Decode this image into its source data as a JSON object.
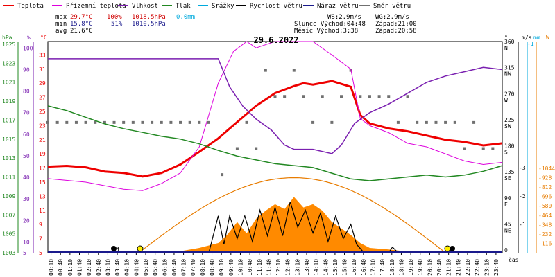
{
  "colors": {
    "temperature": "#ee0000",
    "felt_temperature": "#dd00dd",
    "humidity": "#7a1fb0",
    "pressure": "#228822",
    "precipitation": "#00aadd",
    "wind_speed": "#000000",
    "wind_gust": "#1a1a8c",
    "wind_direction": "#707070",
    "sun_elevation": "#e87c00",
    "solar_radiation": "#ff8a00",
    "max": "#d00000",
    "min": "#1a1a8c",
    "precip_text": "#00aadd"
  },
  "legend": [
    {
      "label": "Teplota",
      "color_key": "temperature"
    },
    {
      "label": "Přízemní teplota",
      "color_key": "felt_temperature"
    },
    {
      "label": "Vlhkost",
      "color_key": "humidity"
    },
    {
      "label": "Tlak",
      "color_key": "pressure"
    },
    {
      "label": "Srážky",
      "color_key": "precipitation"
    },
    {
      "label": "Rychlost větru",
      "color_key": "wind_speed"
    },
    {
      "label": "Náraz větru",
      "color_key": "wind_gust"
    },
    {
      "label": "Směr větru",
      "color_key": "wind_direction"
    }
  ],
  "stats": {
    "max": {
      "label": "max",
      "temp": "29.7°C",
      "hum": "100%",
      "press": "1018.5hPa",
      "precip": "0.0mm"
    },
    "min": {
      "label": "min",
      "temp": "15.8°C",
      "hum": "51%",
      "press": "1010.5hPa"
    },
    "avg": {
      "label": "avg",
      "temp": "21.6°C"
    }
  },
  "info": {
    "ws": "WS:2.9m/s",
    "wg": "WG:2.9m/s",
    "sun": "Slunce Východ:04:48",
    "sun_set": "Západ:21:00",
    "moon": "Měsíc  Východ:3:38",
    "moon_set": "Západ:20:58"
  },
  "chart_data": {
    "type": "line",
    "title": "29.6.2022",
    "x_axis": {
      "label": "čas",
      "ticks": [
        "00:10",
        "00:40",
        "01:10",
        "01:40",
        "02:10",
        "02:40",
        "03:10",
        "03:40",
        "04:10",
        "04:40",
        "05:10",
        "05:40",
        "06:10",
        "06:40",
        "07:10",
        "07:40",
        "08:10",
        "08:40",
        "09:10",
        "09:40",
        "10:10",
        "10:40",
        "11:10",
        "11:40",
        "12:10",
        "12:40",
        "13:10",
        "13:40",
        "14:10",
        "14:40",
        "15:10",
        "15:40",
        "16:10",
        "16:40",
        "17:10",
        "17:40",
        "18:10",
        "18:40",
        "19:10",
        "19:40",
        "20:10",
        "20:40",
        "21:10",
        "21:40",
        "22:10",
        "22:40",
        "23:10",
        "23:40"
      ]
    },
    "axes": {
      "pressure": {
        "unit": "hPa",
        "range": [
          1003,
          1025
        ],
        "ticks": [
          "1025",
          "1023",
          "1021",
          "1019",
          "1017",
          "1015",
          "1013",
          "1011",
          "1009",
          "1007",
          "1005",
          "1003"
        ]
      },
      "humidity": {
        "unit": "%",
        "range": [
          5,
          100
        ],
        "ticks": [
          "100",
          "90",
          "80",
          "70",
          "60",
          "50",
          "40",
          "30",
          "20",
          "10",
          "5"
        ]
      },
      "temperature": {
        "unit": "°C",
        "range": [
          5,
          35
        ],
        "ticks": [
          "33",
          "31",
          "29",
          "27",
          "25",
          "23",
          "21",
          "19",
          "17",
          "15",
          "13",
          "11",
          "9",
          "7",
          "5"
        ]
      },
      "wind_direction": {
        "unit": "°",
        "ticks": [
          {
            "deg": "360",
            "dir": "N"
          },
          {
            "deg": "315",
            "dir": "NW"
          },
          {
            "deg": "270",
            "dir": "W"
          },
          {
            "deg": "225",
            "dir": "SW"
          },
          {
            "deg": "180",
            "dir": "S"
          },
          {
            "deg": "135",
            "dir": "SE"
          },
          {
            "deg": "90",
            "dir": "E"
          },
          {
            "deg": "45",
            "dir": "NE"
          },
          {
            "deg": "0",
            "dir": ""
          }
        ]
      },
      "wind_speed": {
        "unit": "m/s",
        "ticks": [
          "3",
          "2",
          "1"
        ]
      },
      "precipitation": {
        "unit": "mm",
        "ticks": [
          "1"
        ]
      },
      "radiation": {
        "unit": "W",
        "ticks": [
          "1044",
          "928",
          "812",
          "696",
          "580",
          "464",
          "348",
          "232",
          "116"
        ]
      }
    },
    "series": [
      {
        "name": "Teplota",
        "color_key": "temperature",
        "axis": "temperature",
        "points": [
          [
            0,
            17.2
          ],
          [
            1,
            17.3
          ],
          [
            2,
            17.1
          ],
          [
            2.5,
            16.8
          ],
          [
            3,
            16.5
          ],
          [
            4,
            16.3
          ],
          [
            5,
            15.8
          ],
          [
            6,
            16.3
          ],
          [
            7,
            17.5
          ],
          [
            8,
            19.3
          ],
          [
            9,
            21.2
          ],
          [
            10,
            23.5
          ],
          [
            11,
            25.8
          ],
          [
            12,
            27.6
          ],
          [
            13,
            28.6
          ],
          [
            13.5,
            29.0
          ],
          [
            14,
            28.8
          ],
          [
            15,
            29.3
          ],
          [
            16,
            28.5
          ],
          [
            16.5,
            24.5
          ],
          [
            17,
            23.3
          ],
          [
            18,
            22.6
          ],
          [
            19,
            22.2
          ],
          [
            20,
            21.6
          ],
          [
            21,
            21.0
          ],
          [
            22,
            20.7
          ],
          [
            23,
            20.2
          ],
          [
            24,
            20.5
          ]
        ]
      },
      {
        "name": "Přízemní teplota",
        "color_key": "felt_temperature",
        "axis": "temperature",
        "points": [
          [
            0,
            15.5
          ],
          [
            2,
            15.0
          ],
          [
            3,
            14.5
          ],
          [
            4,
            14.0
          ],
          [
            5,
            13.8
          ],
          [
            6,
            14.8
          ],
          [
            7,
            16.3
          ],
          [
            8,
            20.0
          ],
          [
            9,
            29.0
          ],
          [
            9.8,
            33.5
          ],
          [
            10.5,
            35.5
          ],
          [
            11,
            34.0
          ],
          [
            12,
            35.5
          ],
          [
            13,
            35.0
          ],
          [
            14,
            35.5
          ],
          [
            15,
            33.0
          ],
          [
            16,
            31.0
          ],
          [
            16.5,
            24.0
          ],
          [
            17,
            23.0
          ],
          [
            18,
            22.0
          ],
          [
            19,
            20.5
          ],
          [
            20,
            20.0
          ],
          [
            21,
            19.0
          ],
          [
            22,
            18.0
          ],
          [
            23,
            17.5
          ],
          [
            24,
            17.8
          ]
        ]
      },
      {
        "name": "Vlhkost",
        "color_key": "humidity",
        "axis": "humidity",
        "points": [
          [
            0,
            95
          ],
          [
            9,
            95
          ],
          [
            9.6,
            82
          ],
          [
            10.3,
            73
          ],
          [
            11,
            67
          ],
          [
            11.8,
            62
          ],
          [
            12.5,
            55
          ],
          [
            13,
            53
          ],
          [
            14,
            53
          ],
          [
            15,
            51
          ],
          [
            15.5,
            55
          ],
          [
            16.2,
            65
          ],
          [
            17,
            70
          ],
          [
            18,
            74
          ],
          [
            19,
            79
          ],
          [
            20,
            84
          ],
          [
            21,
            87
          ],
          [
            22,
            89
          ],
          [
            23,
            91
          ],
          [
            24,
            90
          ]
        ]
      },
      {
        "name": "Tlak",
        "color_key": "pressure",
        "axis": "pressure",
        "points": [
          [
            0,
            1018.5
          ],
          [
            1,
            1018.0
          ],
          [
            2,
            1017.3
          ],
          [
            3,
            1016.6
          ],
          [
            4,
            1016.1
          ],
          [
            5,
            1015.7
          ],
          [
            6,
            1015.3
          ],
          [
            7,
            1015.0
          ],
          [
            8,
            1014.5
          ],
          [
            9,
            1013.8
          ],
          [
            10,
            1013.2
          ],
          [
            11,
            1012.8
          ],
          [
            12,
            1012.4
          ],
          [
            13,
            1012.2
          ],
          [
            14,
            1012.0
          ],
          [
            15,
            1011.4
          ],
          [
            16,
            1010.8
          ],
          [
            17,
            1010.6
          ],
          [
            18,
            1010.8
          ],
          [
            19,
            1011.0
          ],
          [
            20,
            1011.2
          ],
          [
            21,
            1011.0
          ],
          [
            22,
            1011.2
          ],
          [
            23,
            1011.6
          ],
          [
            24,
            1012.2
          ]
        ]
      }
    ],
    "wind_direction_points": [
      [
        0,
        225
      ],
      [
        0.5,
        225
      ],
      [
        1,
        225
      ],
      [
        1.5,
        225
      ],
      [
        2,
        225
      ],
      [
        2.5,
        225
      ],
      [
        3,
        225
      ],
      [
        3.5,
        225
      ],
      [
        4,
        225
      ],
      [
        4.5,
        225
      ],
      [
        5,
        225
      ],
      [
        5.5,
        225
      ],
      [
        6,
        225
      ],
      [
        6.5,
        225
      ],
      [
        7,
        225
      ],
      [
        7.5,
        225
      ],
      [
        8,
        225
      ],
      [
        8.5,
        225
      ],
      [
        9.2,
        135
      ],
      [
        10.0,
        180
      ],
      [
        10.5,
        225
      ],
      [
        11.0,
        180
      ],
      [
        11.5,
        315
      ],
      [
        12.0,
        270
      ],
      [
        12.5,
        270
      ],
      [
        13.0,
        315
      ],
      [
        13.5,
        270
      ],
      [
        14.0,
        225
      ],
      [
        14.5,
        270
      ],
      [
        15.0,
        225
      ],
      [
        15.5,
        270
      ],
      [
        16.0,
        315
      ],
      [
        16.5,
        270
      ],
      [
        17.0,
        270
      ],
      [
        17.5,
        270
      ],
      [
        18.0,
        270
      ],
      [
        18.5,
        225
      ],
      [
        19.0,
        270
      ],
      [
        19.5,
        225
      ],
      [
        20.0,
        225
      ],
      [
        20.5,
        225
      ],
      [
        21.0,
        225
      ],
      [
        21.5,
        225
      ],
      [
        22.0,
        180
      ],
      [
        22.5,
        225
      ],
      [
        23.0,
        180
      ],
      [
        23.5,
        180
      ]
    ],
    "wind_speed_points": [
      [
        0,
        0
      ],
      [
        8.5,
        0
      ],
      [
        9.0,
        1.3
      ],
      [
        9.3,
        0.3
      ],
      [
        9.6,
        1.3
      ],
      [
        10.0,
        0.5
      ],
      [
        10.4,
        1.3
      ],
      [
        10.8,
        0.4
      ],
      [
        11.2,
        1.5
      ],
      [
        11.6,
        0.6
      ],
      [
        12.0,
        1.6
      ],
      [
        12.4,
        0.6
      ],
      [
        12.8,
        1.8
      ],
      [
        13.2,
        0.9
      ],
      [
        13.6,
        1.5
      ],
      [
        14.0,
        0.7
      ],
      [
        14.4,
        1.4
      ],
      [
        14.8,
        0.4
      ],
      [
        15.2,
        1.3
      ],
      [
        15.6,
        0.5
      ],
      [
        16.0,
        1.0
      ],
      [
        16.3,
        0.3
      ],
      [
        16.7,
        0
      ],
      [
        18.0,
        0
      ],
      [
        18.2,
        0.2
      ],
      [
        18.5,
        0
      ],
      [
        24,
        0
      ]
    ],
    "sun_elevation": {
      "sunrise": 4.8,
      "sunset": 21.0,
      "peak_hour": 13.0,
      "peak_radiation": 928
    },
    "solar_radiation_points": [
      [
        0,
        0
      ],
      [
        5.5,
        0
      ],
      [
        7,
        20
      ],
      [
        8,
        60
      ],
      [
        9,
        120
      ],
      [
        9.5,
        230
      ],
      [
        10,
        380
      ],
      [
        10.5,
        240
      ],
      [
        11,
        420
      ],
      [
        11.5,
        520
      ],
      [
        12,
        600
      ],
      [
        12.5,
        540
      ],
      [
        13,
        690
      ],
      [
        13.5,
        560
      ],
      [
        14,
        600
      ],
      [
        14.5,
        520
      ],
      [
        15,
        380
      ],
      [
        15.5,
        300
      ],
      [
        16,
        220
      ],
      [
        16.5,
        120
      ],
      [
        17,
        60
      ],
      [
        18,
        40
      ],
      [
        19,
        15
      ],
      [
        20,
        5
      ],
      [
        21,
        0
      ],
      [
        24,
        0
      ]
    ]
  }
}
